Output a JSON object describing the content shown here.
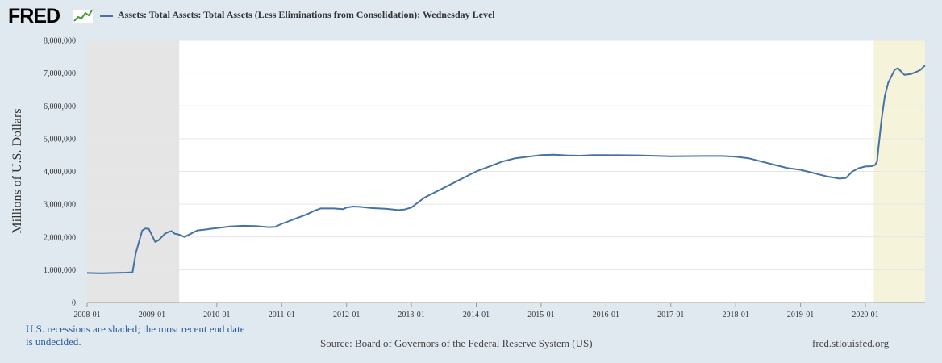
{
  "header": {
    "logo_text": "FRED",
    "logo_icon": "fred-chart-icon"
  },
  "note_lines": [
    "U.S. recessions are shaded; the most recent end date",
    "is undecided."
  ],
  "source": "Source: Board of Governors of the Federal Reserve System (US)",
  "site": "fred.stlouisfed.org",
  "colors": {
    "background": "#e1e9f0",
    "plot": "#ffffff",
    "series": "#4572a7",
    "recession_1": "#e5e5e5",
    "recession_2": "#f5f4da",
    "grid": "#e6e6e6"
  },
  "chart_data": {
    "type": "line",
    "ylabel": "Millions of U.S. Dollars",
    "ylim": [
      0,
      8000000
    ],
    "xlim": [
      2008.0,
      2020.92
    ],
    "grid": true,
    "legend_position": "top-left",
    "y_ticks": [
      "0",
      "1,000,000",
      "2,000,000",
      "3,000,000",
      "4,000,000",
      "5,000,000",
      "6,000,000",
      "7,000,000",
      "8,000,000"
    ],
    "x_ticks": [
      "2008-01",
      "2009-01",
      "2010-01",
      "2011-01",
      "2012-01",
      "2013-01",
      "2014-01",
      "2015-01",
      "2016-01",
      "2017-01",
      "2018-01",
      "2019-01",
      "2020-01"
    ],
    "recessions": [
      {
        "start": 2008.0,
        "end": 2009.42
      },
      {
        "start": 2020.13,
        "end": 2020.92
      }
    ],
    "series": [
      {
        "name": "Assets: Total Assets: Total Assets (Less Eliminations from Consolidation): Wednesday Level",
        "x": [
          2008.0,
          2008.2,
          2008.4,
          2008.6,
          2008.7,
          2008.75,
          2008.8,
          2008.85,
          2008.9,
          2008.95,
          2009.0,
          2009.05,
          2009.1,
          2009.15,
          2009.2,
          2009.25,
          2009.3,
          2009.35,
          2009.4,
          2009.45,
          2009.5,
          2009.6,
          2009.7,
          2009.8,
          2009.9,
          2010.0,
          2010.2,
          2010.4,
          2010.6,
          2010.8,
          2010.9,
          2011.0,
          2011.2,
          2011.4,
          2011.5,
          2011.6,
          2011.8,
          2011.95,
          2012.0,
          2012.1,
          2012.2,
          2012.4,
          2012.6,
          2012.8,
          2012.9,
          2013.0,
          2013.2,
          2013.4,
          2013.6,
          2013.8,
          2014.0,
          2014.2,
          2014.4,
          2014.6,
          2014.8,
          2015.0,
          2015.2,
          2015.4,
          2015.6,
          2015.8,
          2016.0,
          2016.5,
          2017.0,
          2017.5,
          2017.8,
          2018.0,
          2018.2,
          2018.4,
          2018.6,
          2018.8,
          2019.0,
          2019.2,
          2019.4,
          2019.6,
          2019.7,
          2019.8,
          2019.9,
          2020.0,
          2020.1,
          2020.15,
          2020.18,
          2020.2,
          2020.25,
          2020.3,
          2020.35,
          2020.4,
          2020.45,
          2020.5,
          2020.55,
          2020.6,
          2020.7,
          2020.8,
          2020.85,
          2020.9,
          2020.92
        ],
        "values": [
          900000,
          890000,
          900000,
          910000,
          920000,
          1500000,
          1850000,
          2200000,
          2260000,
          2250000,
          2050000,
          1850000,
          1900000,
          2000000,
          2100000,
          2150000,
          2180000,
          2100000,
          2080000,
          2050000,
          2000000,
          2100000,
          2200000,
          2220000,
          2250000,
          2270000,
          2320000,
          2340000,
          2330000,
          2300000,
          2310000,
          2400000,
          2550000,
          2700000,
          2800000,
          2870000,
          2870000,
          2850000,
          2900000,
          2930000,
          2920000,
          2880000,
          2860000,
          2820000,
          2840000,
          2900000,
          3200000,
          3400000,
          3600000,
          3800000,
          4000000,
          4150000,
          4300000,
          4400000,
          4450000,
          4500000,
          4510000,
          4490000,
          4480000,
          4500000,
          4500000,
          4490000,
          4460000,
          4470000,
          4470000,
          4450000,
          4400000,
          4300000,
          4200000,
          4100000,
          4050000,
          3950000,
          3850000,
          3780000,
          3800000,
          4000000,
          4100000,
          4150000,
          4160000,
          4200000,
          4300000,
          4700000,
          5600000,
          6300000,
          6700000,
          6900000,
          7100000,
          7150000,
          7050000,
          6950000,
          6970000,
          7050000,
          7100000,
          7200000,
          7230000
        ]
      }
    ]
  }
}
